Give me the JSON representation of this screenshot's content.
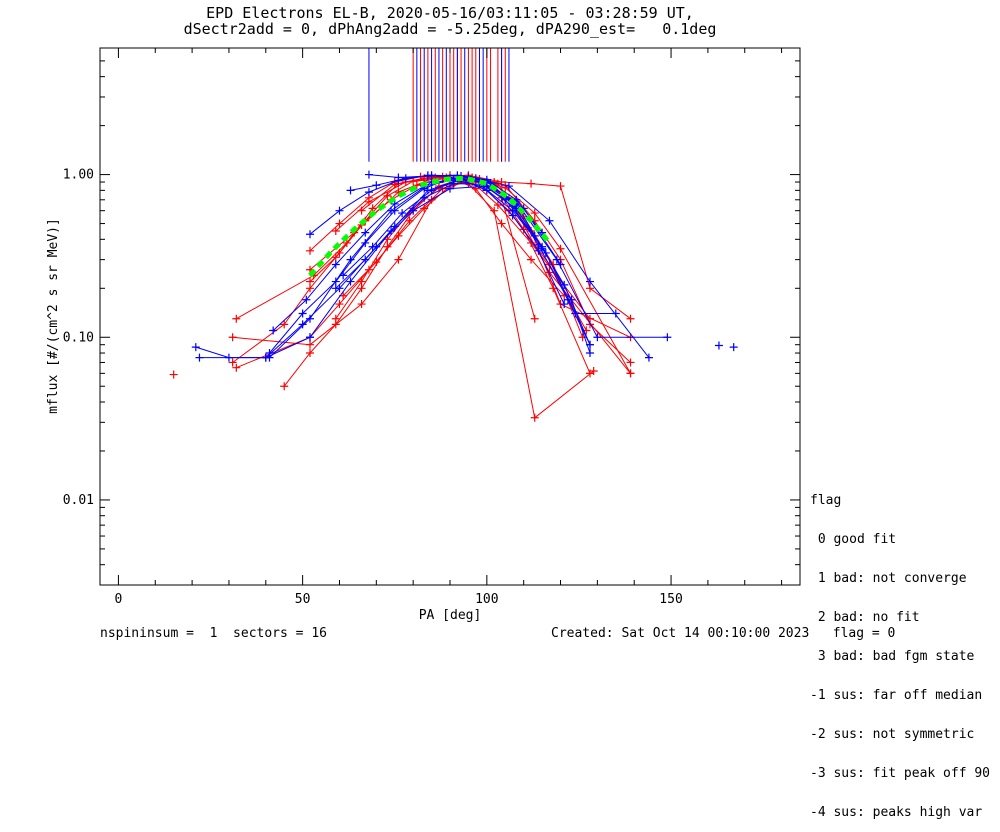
{
  "title_line1": "EPD Electrons EL-B, 2020-05-16/03:11:05 - 03:28:59 UT,",
  "title_line2": "dSectr2add = 0, dPhAng2add = -5.25deg, dPA290_est=   0.1deg",
  "footer_left": "nspininsum =  1  sectors = 16",
  "footer_right": "Created: Sat Oct 14 00:10:00 2023   flag = 0",
  "legend": {
    "header": "flag",
    "items": [
      " 0 good fit",
      " 1 bad: not converge",
      " 2 bad: no fit",
      " 3 bad: bad fgm state",
      "-1 sus: far off median",
      "-2 sus: not symmetric",
      "-3 sus: fit peak off 90",
      "-4 sus: peaks high var"
    ]
  },
  "colors": {
    "red": "#ff0000",
    "blue": "#0000ff",
    "green": "#00ff00",
    "black": "#000000"
  },
  "chart_data": {
    "type": "line",
    "xlabel": "PA [deg]",
    "ylabel": "mflux [#/(cm^2 s sr MeV)]",
    "xlim": [
      -5,
      185
    ],
    "ylim": [
      0.003,
      6
    ],
    "ylog": true,
    "xticks": [
      0,
      50,
      100,
      150
    ],
    "xtick_labels": [
      "0",
      "50",
      "100",
      "150"
    ],
    "yticks": [
      0.01,
      0.1,
      1.0
    ],
    "ytick_labels": [
      "0.01",
      "0.10",
      "1.00"
    ],
    "grid": false,
    "series": [
      {
        "color": "red",
        "x": [
          32,
          53,
          62,
          69,
          76,
          83,
          90,
          97,
          104,
          112,
          121
        ],
        "y": [
          0.13,
          0.24,
          0.38,
          0.62,
          0.88,
          0.95,
          0.96,
          0.82,
          0.5,
          0.3,
          0.18
        ]
      },
      {
        "color": "red",
        "x": [
          31,
          45,
          52,
          60,
          67,
          74,
          81,
          89,
          96,
          103,
          112,
          128
        ],
        "y": [
          0.07,
          0.12,
          0.2,
          0.33,
          0.52,
          0.7,
          0.86,
          0.96,
          0.9,
          0.65,
          0.38,
          0.13
        ]
      },
      {
        "color": "red",
        "x": [
          32,
          52,
          60,
          68,
          76,
          83,
          90,
          98,
          105,
          113,
          120,
          139
        ],
        "y": [
          0.065,
          0.1,
          0.16,
          0.26,
          0.42,
          0.62,
          0.85,
          0.94,
          0.83,
          0.58,
          0.35,
          0.06
        ]
      },
      {
        "color": "red",
        "x": [
          52,
          60,
          68,
          75,
          82,
          90,
          97,
          104,
          113
        ],
        "y": [
          0.34,
          0.5,
          0.72,
          0.9,
          0.97,
          0.99,
          0.93,
          0.72,
          0.13
        ]
      },
      {
        "color": "red",
        "x": [
          45,
          52,
          59,
          66,
          73,
          80,
          87,
          95,
          102,
          110,
          118,
          128
        ],
        "y": [
          0.05,
          0.08,
          0.12,
          0.2,
          0.36,
          0.6,
          0.85,
          0.97,
          0.86,
          0.46,
          0.2,
          0.06
        ]
      },
      {
        "color": "red",
        "x": [
          52,
          59,
          66,
          73,
          80,
          88,
          95,
          102,
          113,
          129
        ],
        "y": [
          0.22,
          0.31,
          0.49,
          0.74,
          0.91,
          0.94,
          0.88,
          0.6,
          0.032,
          0.062
        ]
      },
      {
        "color": "red",
        "x": [
          59,
          66,
          73,
          80,
          87,
          95,
          102,
          110,
          118,
          126
        ],
        "y": [
          0.13,
          0.22,
          0.4,
          0.62,
          0.83,
          0.98,
          0.9,
          0.55,
          0.28,
          0.1
        ]
      },
      {
        "color": "red",
        "x": [
          31,
          52,
          66,
          76,
          85,
          95,
          103,
          112,
          120,
          139
        ],
        "y": [
          0.1,
          0.09,
          0.16,
          0.3,
          0.7,
          0.96,
          0.88,
          0.45,
          0.16,
          0.1
        ]
      },
      {
        "color": "red",
        "x": [
          59,
          68,
          78,
          88,
          97,
          106,
          117,
          127
        ],
        "y": [
          0.45,
          0.68,
          0.9,
          0.97,
          0.92,
          0.6,
          0.28,
          0.11
        ]
      },
      {
        "color": "red",
        "x": [
          61,
          70,
          79,
          88,
          96,
          105,
          113,
          120,
          128,
          139
        ],
        "y": [
          0.18,
          0.29,
          0.52,
          0.82,
          0.96,
          0.86,
          0.52,
          0.3,
          0.12,
          0.07
        ]
      },
      {
        "color": "red",
        "x": [
          52,
          64,
          76,
          86,
          96,
          106,
          117,
          139
        ],
        "y": [
          0.26,
          0.44,
          0.78,
          0.96,
          0.95,
          0.72,
          0.25,
          0.06
        ]
      },
      {
        "color": "red",
        "x": [
          66,
          75,
          85,
          95,
          104,
          112,
          120,
          128,
          139
        ],
        "y": [
          0.6,
          0.87,
          0.97,
          0.99,
          0.9,
          0.88,
          0.85,
          0.2,
          0.13
        ]
      },
      {
        "color": "blue",
        "x": [
          41,
          50,
          59,
          67,
          75,
          83,
          90,
          98,
          105,
          113,
          121,
          128
        ],
        "y": [
          0.08,
          0.14,
          0.22,
          0.38,
          0.6,
          0.82,
          0.95,
          0.9,
          0.7,
          0.42,
          0.21,
          0.09
        ]
      },
      {
        "color": "blue",
        "x": [
          52,
          60,
          68,
          76,
          84,
          92,
          100,
          107,
          114,
          121
        ],
        "y": [
          0.43,
          0.6,
          0.78,
          0.92,
          0.99,
          0.95,
          0.8,
          0.56,
          0.34,
          0.16
        ]
      },
      {
        "color": "blue",
        "x": [
          42,
          51,
          59,
          67,
          75,
          83,
          91,
          99,
          107,
          115,
          123,
          128
        ],
        "y": [
          0.11,
          0.17,
          0.28,
          0.44,
          0.66,
          0.85,
          0.93,
          0.84,
          0.6,
          0.36,
          0.17,
          0.08
        ]
      },
      {
        "color": "blue",
        "x": [
          63,
          70,
          78,
          85,
          93,
          100,
          108,
          115
        ],
        "y": [
          0.8,
          0.86,
          0.95,
          0.99,
          0.98,
          0.9,
          0.66,
          0.35
        ]
      },
      {
        "color": "blue",
        "x": [
          61,
          69,
          77,
          85,
          93,
          101,
          108,
          116,
          124,
          135
        ],
        "y": [
          0.24,
          0.36,
          0.58,
          0.8,
          0.93,
          0.89,
          0.62,
          0.33,
          0.14,
          0.14
        ]
      },
      {
        "color": "blue",
        "x": [
          59,
          67,
          75,
          83,
          91,
          99,
          107,
          114,
          122,
          128
        ],
        "y": [
          0.2,
          0.3,
          0.48,
          0.72,
          0.88,
          0.87,
          0.64,
          0.37,
          0.17,
          0.09
        ]
      },
      {
        "color": "blue",
        "x": [
          21,
          30,
          41,
          52,
          63,
          74,
          85,
          97,
          108,
          119,
          130,
          149
        ],
        "y": [
          0.087,
          0.075,
          0.075,
          0.13,
          0.3,
          0.6,
          0.9,
          0.95,
          0.68,
          0.3,
          0.1,
          0.1
        ]
      },
      {
        "color": "blue",
        "x": [
          22,
          40,
          52,
          63,
          74,
          84,
          95,
          106,
          117,
          128,
          144
        ],
        "y": [
          0.075,
          0.075,
          0.1,
          0.22,
          0.45,
          0.8,
          0.97,
          0.85,
          0.52,
          0.22,
          0.075
        ]
      },
      {
        "color": "blue",
        "x": [
          68,
          76,
          84,
          92,
          100,
          108,
          115
        ],
        "y": [
          1.0,
          0.96,
          0.98,
          0.99,
          0.93,
          0.7,
          0.44
        ]
      },
      {
        "color": "blue",
        "x": [
          40,
          50,
          60,
          70,
          80,
          90,
          100,
          110,
          120
        ],
        "y": [
          0.075,
          0.12,
          0.2,
          0.36,
          0.6,
          0.82,
          0.85,
          0.62,
          0.28
        ]
      }
    ],
    "unconnected_points": {
      "blue": {
        "x": [
          163,
          167
        ],
        "y": [
          0.089,
          0.087
        ]
      },
      "red": {
        "x": [
          15
        ],
        "y": [
          0.059
        ]
      }
    },
    "median_curve": {
      "color": "green",
      "style": "dashed",
      "x": [
        52,
        58,
        64,
        70,
        76,
        82,
        88,
        94,
        100,
        106,
        112,
        117
      ],
      "y": [
        0.24,
        0.34,
        0.46,
        0.6,
        0.74,
        0.86,
        0.93,
        0.95,
        0.88,
        0.72,
        0.52,
        0.38
      ]
    },
    "peak_markers": {
      "red": [
        80,
        82,
        84,
        86,
        88,
        90,
        91,
        92,
        93,
        95,
        96,
        97,
        100,
        101,
        103,
        104,
        105
      ],
      "blue": [
        68,
        81,
        83,
        85,
        87,
        89,
        92,
        94,
        98,
        99,
        104,
        106
      ]
    }
  }
}
